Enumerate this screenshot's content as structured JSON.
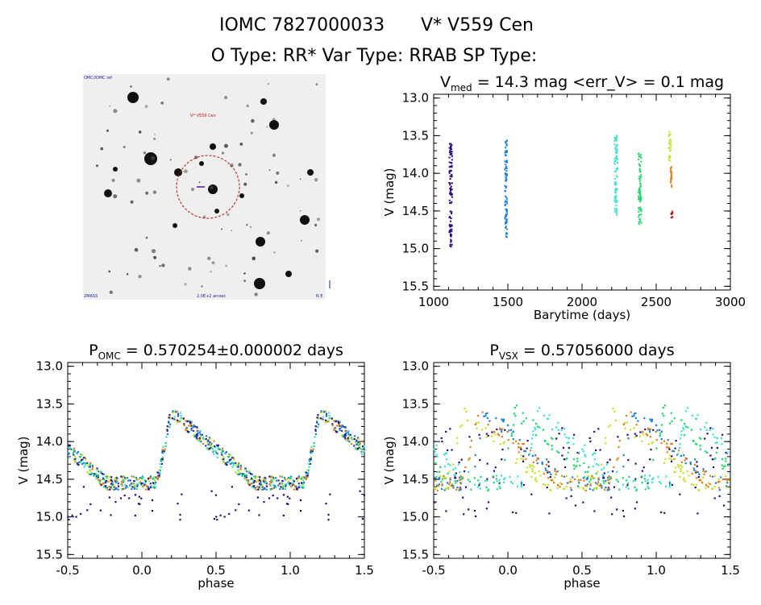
{
  "header": {
    "line1_id": "IOMC 7827000033",
    "line1_name": "V* V559 Cen",
    "line2": "O Type: RR*  Var Type: RRAB  SP Type:"
  },
  "finder": {
    "label_top_left": "OMC/IOMC ref",
    "label_target": "V* V559 Cen",
    "label_bottom_left": "2MASS",
    "label_bottom_center": "2.0E+2 arcsec",
    "label_bottom_right": "N E"
  },
  "chart_data": [
    {
      "type": "scatter",
      "title": "V_med = 14.3 mag <err_V> = 0.1 mag",
      "xlabel": "Barytime (days)",
      "ylabel": "V (mag)",
      "xlim": [
        1000,
        3000
      ],
      "ylim": [
        15.55,
        12.95
      ],
      "y_inverted": true,
      "xticks": [
        1000,
        1500,
        2000,
        2500,
        3000
      ],
      "yticks": [
        13.0,
        13.5,
        14.0,
        14.5,
        15.0,
        15.5
      ],
      "grid": false,
      "series": [
        {
          "color": "#2a0a7a",
          "x_range": [
            1105,
            1125
          ],
          "y_range": [
            13.6,
            15.0
          ]
        },
        {
          "color": "#1f7fd6",
          "x_range": [
            1480,
            1495
          ],
          "y_range": [
            13.55,
            14.85
          ]
        },
        {
          "color": "#40e0d0",
          "x_range": [
            2220,
            2240
          ],
          "y_range": [
            13.5,
            14.6
          ]
        },
        {
          "color": "#22d46e",
          "x_range": [
            2380,
            2400
          ],
          "y_range": [
            13.7,
            14.7
          ]
        },
        {
          "color": "#c8e02a",
          "x_range": [
            2585,
            2600
          ],
          "y_range": [
            13.45,
            13.85
          ]
        },
        {
          "color": "#e0801a",
          "x_range": [
            2595,
            2605
          ],
          "y_range": [
            13.9,
            14.2
          ]
        },
        {
          "color": "#c02020",
          "x_range": [
            2600,
            2610
          ],
          "y_range": [
            14.5,
            14.6
          ]
        }
      ]
    },
    {
      "type": "scatter",
      "title": "P_OMC = 0.570254±0.000002 days",
      "xlabel": "phase",
      "ylabel": "V (mag)",
      "xlim": [
        -0.5,
        1.5
      ],
      "ylim": [
        15.55,
        12.95
      ],
      "y_inverted": true,
      "xticks": [
        -0.5,
        0.0,
        0.5,
        1.0,
        1.5
      ],
      "yticks": [
        13.0,
        13.5,
        14.0,
        14.5,
        15.0,
        15.5
      ],
      "grid": false,
      "lightcurve": {
        "phase_of_max": 0.2,
        "v_max": 13.6,
        "v_min": 14.55,
        "rise_width": 0.1
      }
    },
    {
      "type": "scatter",
      "title": "P_VSX = 0.57056000 days",
      "xlabel": "phase",
      "ylabel": "V (mag)",
      "xlim": [
        -0.5,
        1.5
      ],
      "ylim": [
        15.55,
        12.95
      ],
      "y_inverted": true,
      "xticks": [
        -0.5,
        0.0,
        0.5,
        1.0,
        1.5
      ],
      "yticks": [
        13.0,
        13.5,
        14.0,
        14.5,
        15.0,
        15.5
      ],
      "grid": false,
      "lightcurve": {
        "v_max": 13.6,
        "v_min": 14.55
      }
    }
  ]
}
